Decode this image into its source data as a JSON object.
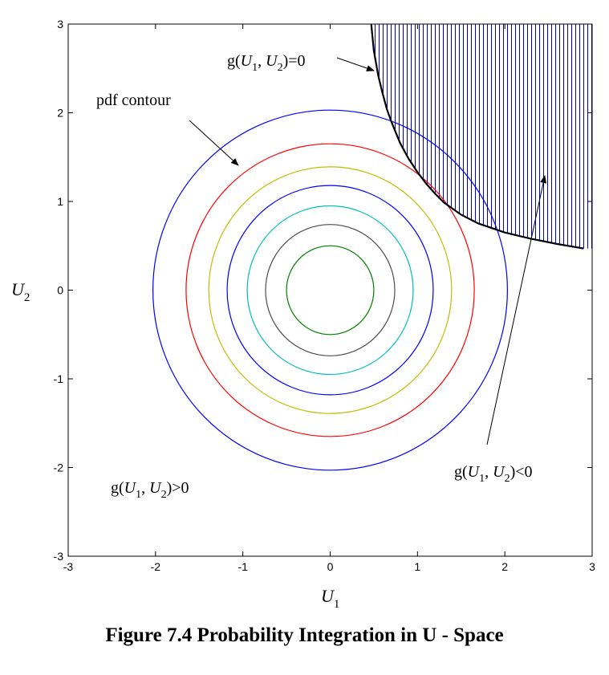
{
  "caption": "Figure 7.4 Probability Integration in U - Space",
  "chart_data": {
    "type": "line",
    "xlim": [
      -3,
      3
    ],
    "ylim": [
      -3,
      3
    ],
    "x_ticks": [
      -3,
      -2,
      -1,
      0,
      1,
      2,
      3
    ],
    "y_ticks": [
      -3,
      -2,
      -1,
      0,
      1,
      2,
      3
    ],
    "tick_labels": [
      "-3",
      "-2",
      "-1",
      "0",
      "1",
      "2",
      "3"
    ],
    "xlabel": {
      "main": "U",
      "sub": "1"
    },
    "ylabel": {
      "main": "U",
      "sub": "2"
    },
    "grid": false,
    "contours": [
      {
        "radius": 0.5,
        "color": "#008000"
      },
      {
        "radius": 0.74,
        "color": "#4d4d4d"
      },
      {
        "radius": 0.95,
        "color": "#00bfbf"
      },
      {
        "radius": 1.18,
        "color": "#0000ff"
      },
      {
        "radius": 1.39,
        "color": "#bfbf00"
      },
      {
        "radius": 1.65,
        "color": "#ff0000"
      },
      {
        "radius": 2.03,
        "color": "#0000ff"
      }
    ],
    "limit_state_curve": {
      "color": "#000000",
      "hatch_color": "#0000cc",
      "x": [
        0.47,
        0.5,
        0.55,
        0.6,
        0.65,
        0.7,
        0.8,
        0.9,
        1.0,
        1.1,
        1.2,
        1.3,
        1.5,
        1.7,
        2.0,
        2.3,
        2.6,
        2.9
      ],
      "y": [
        3.0,
        2.7,
        2.42,
        2.22,
        2.04,
        1.9,
        1.66,
        1.48,
        1.33,
        1.2,
        1.09,
        0.99,
        0.85,
        0.75,
        0.65,
        0.58,
        0.52,
        0.47
      ]
    },
    "annotations": [
      {
        "id": "g-zero",
        "prefix": "g(",
        "v1": "U",
        "s1": "1",
        "mid": ", ",
        "v2": "U",
        "s2": "2",
        "suffix": ")=0"
      },
      {
        "id": "pdf-contour",
        "text": "pdf contour"
      },
      {
        "id": "g-positive",
        "prefix": "g(",
        "v1": "U",
        "s1": "1",
        "mid": ", ",
        "v2": "U",
        "s2": "2",
        "suffix": ")>0"
      },
      {
        "id": "g-negative",
        "prefix": "g(",
        "v1": "U",
        "s1": "1",
        "mid": ", ",
        "v2": "U",
        "s2": "2",
        "suffix": ")<0"
      }
    ]
  }
}
